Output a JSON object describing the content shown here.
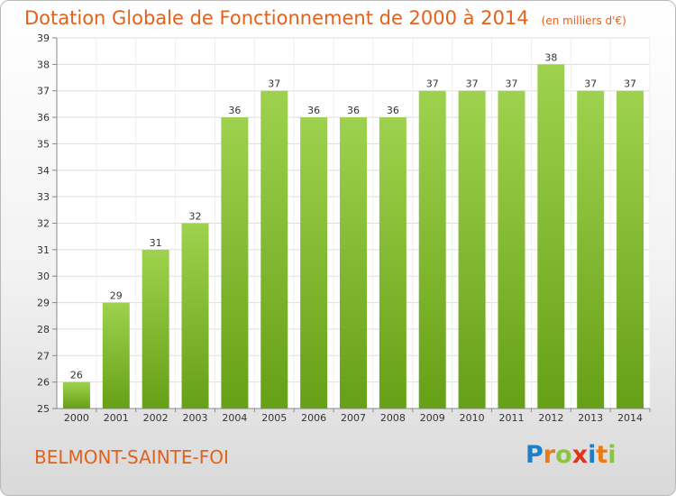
{
  "header": {
    "title": "Dotation Globale de Fonctionnement de 2000 à 2014",
    "subtitle": "(en milliers d'€)"
  },
  "footer": {
    "commune": "BELMONT-SAINTE-FOI"
  },
  "logo": {
    "letters": [
      "P",
      "r",
      "o",
      "x",
      "i",
      "t",
      "i"
    ],
    "colors": [
      "#1f7fc4",
      "#ec7a12",
      "#8bc43f",
      "#e2341a",
      "#1f7fc4",
      "#ec7a12",
      "#8bc43f"
    ]
  },
  "colors": {
    "bar_light": "#9ed24e",
    "bar_dark": "#66a016",
    "accent": "#e2621c"
  },
  "chart_data": {
    "type": "bar",
    "categories": [
      "2000",
      "2001",
      "2002",
      "2003",
      "2004",
      "2005",
      "2006",
      "2007",
      "2008",
      "2009",
      "2010",
      "2011",
      "2012",
      "2013",
      "2014"
    ],
    "values": [
      26,
      29,
      31,
      32,
      36,
      37,
      36,
      36,
      36,
      37,
      37,
      37,
      38,
      37,
      37
    ],
    "title": "Dotation Globale de Fonctionnement de 2000 à 2014",
    "ylim": [
      25,
      39
    ],
    "yticks": [
      25,
      26,
      27,
      28,
      29,
      30,
      31,
      32,
      33,
      34,
      35,
      36,
      37,
      38,
      39
    ],
    "grid": true,
    "data_labels": true
  }
}
